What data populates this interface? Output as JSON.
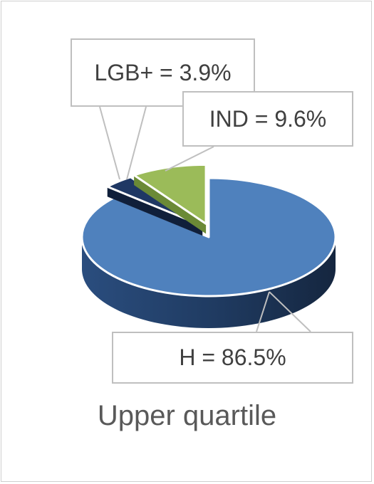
{
  "chart_data": {
    "type": "pie",
    "style": "3d-exploded",
    "title": "Upper quartile",
    "slices": [
      {
        "name": "H",
        "value": 86.5,
        "label": "H = 86.5%",
        "color": "#4f81bd",
        "side_color": "#2b4a75"
      },
      {
        "name": "LGB+",
        "value": 3.9,
        "label": "LGB+ = 3.9%",
        "color": "#1f3864",
        "side_color": "#101f3a"
      },
      {
        "name": "IND",
        "value": 9.6,
        "label": "IND = 9.6%",
        "color": "#9bbb59",
        "side_color": "#6b8a36"
      }
    ],
    "legend": "none"
  }
}
